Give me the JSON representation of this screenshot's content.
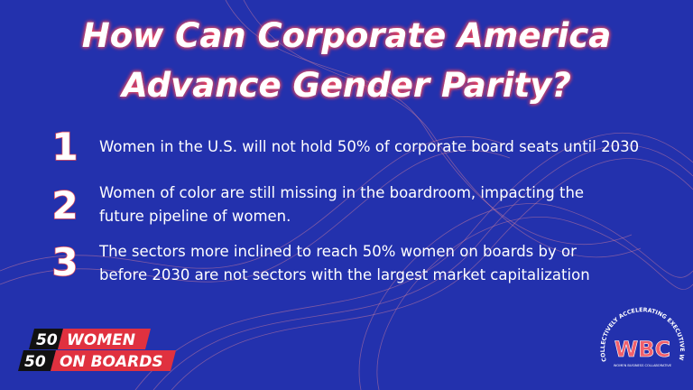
{
  "header": {
    "title_lines": [
      "How Can Corporate America",
      "Advance Gender Parity?"
    ]
  },
  "items": [
    {
      "number": "1",
      "lines": [
        "Women in the U.S. will not hold 50% of corporate board seats until 2030"
      ]
    },
    {
      "number": "2",
      "lines": [
        "Women of color are still missing in the boardroom, impacting the",
        "future pipeline of women."
      ]
    },
    {
      "number": "3",
      "lines": [
        "The sectors more inclined to reach 50% women on boards by or",
        "before 2030 are not sectors with the largest market capitalization"
      ]
    }
  ],
  "logo_left": {
    "row1_number": "50",
    "row1_text": "WOMEN",
    "row2_number": "50",
    "row2_text": "ON BOARDS"
  },
  "logo_right": {
    "arc_text": "COLLECTIVELY ACCELERATING EXECUTIVE WOMEN",
    "initials": "WBC",
    "subtitle": "WOMEN BUSINESS COLLABORATIVE"
  }
}
